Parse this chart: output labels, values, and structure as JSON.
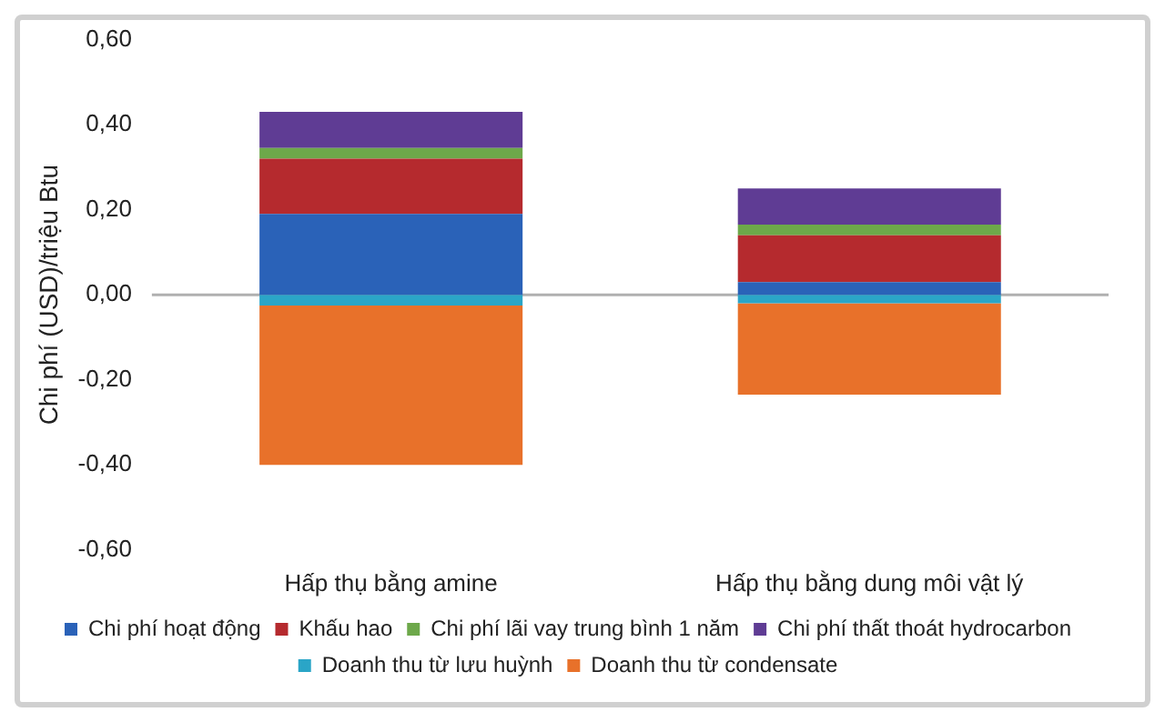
{
  "chart_data": {
    "type": "bar",
    "stacked": true,
    "ylabel": "Chi phí (USD)/triệu Btu",
    "categories": [
      "Hấp thụ bằng amine",
      "Hấp thụ bằng dung môi vật lý"
    ],
    "series": [
      {
        "name": "Chi phí hoạt động",
        "color": "#2a62b8",
        "values": [
          0.19,
          0.03
        ]
      },
      {
        "name": "Khấu hao",
        "color": "#b52a2e",
        "values": [
          0.13,
          0.11
        ]
      },
      {
        "name": "Chi phí lãi vay trung bình 1 năm",
        "color": "#6da84a",
        "values": [
          0.025,
          0.025
        ]
      },
      {
        "name": "Chi phí thất thoát hydrocarbon",
        "color": "#5f3c94",
        "values": [
          0.085,
          0.085
        ]
      },
      {
        "name": "Doanh thu từ lưu huỳnh",
        "color": "#2aa5c7",
        "values": [
          -0.025,
          -0.02
        ]
      },
      {
        "name": "Doanh thu từ condensate",
        "color": "#e8712a",
        "values": [
          -0.375,
          -0.215
        ]
      }
    ],
    "ylim": [
      -0.6,
      0.6
    ],
    "yticks": [
      {
        "value": -0.6,
        "label": "-0,60"
      },
      {
        "value": -0.4,
        "label": "-0,40"
      },
      {
        "value": -0.2,
        "label": "-0,20"
      },
      {
        "value": 0,
        "label": "0,00"
      },
      {
        "value": 0.2,
        "label": "0,20"
      },
      {
        "value": 0.4,
        "label": "0,40"
      },
      {
        "value": 0.6,
        "label": "0,60"
      }
    ],
    "ref_lines": [
      {
        "axis": "y",
        "value": 0,
        "color": "#b0b0b0"
      }
    ],
    "grid": false,
    "legend": "bottom"
  }
}
